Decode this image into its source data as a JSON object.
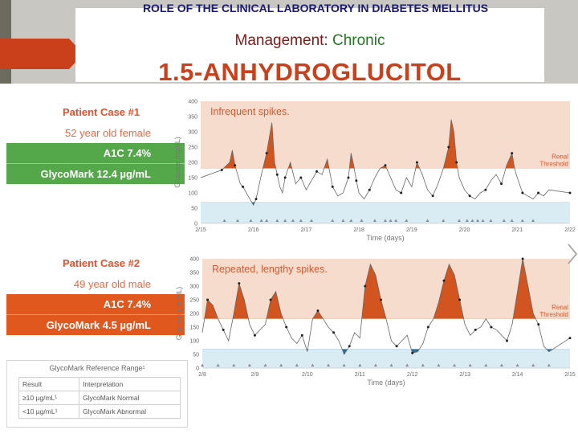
{
  "slide": {
    "title": "ROLE OF THE CLINICAL LABORATORY IN DIABETES MELLITUS",
    "subtitle_prefix": "Management:",
    "subtitle_highlight": "Chronic",
    "big_title": "1.5-ANHYDROGLUCITOL"
  },
  "cases": [
    {
      "title": "Patient Case #1",
      "desc": "52 year old female",
      "a1c": "A1C 7.4%",
      "glycomark": "GlycoMark 12.4 µg/mL",
      "bar_color": "#55a84a"
    },
    {
      "title": "Patient Case #2",
      "desc": "49 year old male",
      "a1c": "A1C 7.4%",
      "glycomark": "GlycoMark 4.5 µg/mL",
      "bar_color": "#e0581e"
    }
  ],
  "reference": {
    "title": "GlycoMark Reference Range¹",
    "header": [
      "Result",
      "Interpretation"
    ],
    "rows": [
      [
        "≥10 µg/mL¹",
        "GlycoMark Normal"
      ],
      [
        "<10 µg/mL¹",
        "GlycoMark Abnormal"
      ]
    ]
  },
  "colors": {
    "high_band": "#f6dccd",
    "low_band": "#d9ebf3",
    "spike_fill": "#d2541e",
    "low_fill": "#2c6f9a",
    "trace": "#666666"
  },
  "chart_data": [
    {
      "type": "area",
      "title": "Infrequent spikes.",
      "xlabel": "Time (days)",
      "ylabel": "Glucose mg/dL)",
      "x_ticks": [
        "2/15",
        "2/16",
        "2/17",
        "2/18",
        "2/19",
        "2/20",
        "2/21",
        "2/22"
      ],
      "y_ticks": [
        0,
        50,
        100,
        150,
        200,
        250,
        300,
        350,
        400
      ],
      "ylim": [
        0,
        400
      ],
      "renal_threshold": 180,
      "threshold_label": [
        "Renal",
        "Threshold"
      ],
      "low_threshold": 70,
      "x": [
        0,
        0.4,
        0.55,
        0.6,
        0.65,
        0.7,
        0.75,
        0.8,
        0.9,
        1.0,
        1.05,
        1.1,
        1.15,
        1.25,
        1.35,
        1.4,
        1.45,
        1.5,
        1.55,
        1.6,
        1.7,
        1.8,
        1.9,
        2.0,
        2.1,
        2.2,
        2.3,
        2.4,
        2.5,
        2.6,
        2.7,
        2.8,
        2.85,
        2.9,
        2.95,
        3.0,
        3.1,
        3.2,
        3.3,
        3.4,
        3.5,
        3.6,
        3.7,
        3.8,
        3.9,
        4.0,
        4.1,
        4.2,
        4.3,
        4.4,
        4.5,
        4.6,
        4.7,
        4.75,
        4.8,
        4.85,
        4.9,
        5.0,
        5.1,
        5.2,
        5.3,
        5.4,
        5.5,
        5.6,
        5.7,
        5.8,
        5.85,
        5.9,
        5.95,
        6.0,
        6.1,
        6.2,
        6.3,
        6.4,
        6.5,
        6.6,
        7.0
      ],
      "y": [
        150,
        175,
        200,
        240,
        190,
        160,
        130,
        120,
        90,
        60,
        80,
        120,
        160,
        230,
        330,
        200,
        160,
        120,
        100,
        150,
        200,
        130,
        150,
        110,
        140,
        170,
        160,
        210,
        120,
        90,
        100,
        150,
        230,
        190,
        140,
        100,
        80,
        110,
        150,
        180,
        190,
        150,
        110,
        100,
        150,
        120,
        200,
        160,
        110,
        90,
        130,
        180,
        250,
        340,
        300,
        200,
        150,
        110,
        90,
        80,
        100,
        110,
        140,
        160,
        130,
        190,
        210,
        230,
        180,
        150,
        100,
        90,
        80,
        100,
        90,
        110,
        100
      ],
      "marker_days": [
        0.45,
        0.7,
        0.95,
        1.15,
        1.25,
        1.45,
        1.6,
        1.75,
        1.9,
        2.1,
        2.5,
        2.7,
        2.85,
        3.05,
        3.3,
        3.5,
        3.6,
        3.7,
        3.9,
        4.3,
        4.6,
        4.9,
        5.05,
        5.15,
        5.25,
        5.35,
        5.5,
        5.75,
        5.9,
        6.1,
        6.3
      ]
    },
    {
      "type": "area",
      "title": "Repeated, lengthy spikes.",
      "xlabel": "Time (days)",
      "ylabel": "Glucose (mg/dL)",
      "x_ticks": [
        "2/8",
        "2/9",
        "2/10",
        "2/11",
        "2/12",
        "2/13",
        "2/14",
        "2/15"
      ],
      "y_ticks": [
        0,
        50,
        100,
        150,
        200,
        250,
        300,
        350,
        400
      ],
      "ylim": [
        0,
        400
      ],
      "renal_threshold": 180,
      "threshold_label": [
        "Renal",
        "Threshold"
      ],
      "low_threshold": 70,
      "x": [
        0,
        0.1,
        0.2,
        0.3,
        0.4,
        0.5,
        0.6,
        0.7,
        0.8,
        0.9,
        1.0,
        1.1,
        1.2,
        1.3,
        1.4,
        1.5,
        1.6,
        1.7,
        1.8,
        1.9,
        2.0,
        2.1,
        2.2,
        2.3,
        2.4,
        2.5,
        2.6,
        2.7,
        2.8,
        2.9,
        3.0,
        3.1,
        3.2,
        3.3,
        3.4,
        3.5,
        3.6,
        3.7,
        3.8,
        3.9,
        4.0,
        4.1,
        4.2,
        4.3,
        4.4,
        4.5,
        4.6,
        4.7,
        4.8,
        4.9,
        5.0,
        5.1,
        5.2,
        5.3,
        5.4,
        5.5,
        5.6,
        5.7,
        5.8,
        5.9,
        6.0,
        6.1,
        6.2,
        6.3,
        6.4,
        6.5,
        6.6,
        7.0
      ],
      "y": [
        130,
        250,
        230,
        180,
        140,
        100,
        200,
        310,
        250,
        160,
        120,
        140,
        160,
        250,
        280,
        200,
        150,
        110,
        90,
        120,
        60,
        180,
        210,
        180,
        150,
        130,
        100,
        50,
        80,
        130,
        110,
        300,
        380,
        340,
        250,
        180,
        100,
        80,
        100,
        120,
        55,
        60,
        90,
        150,
        180,
        240,
        320,
        380,
        340,
        250,
        160,
        120,
        140,
        150,
        180,
        150,
        140,
        120,
        100,
        160,
        280,
        400,
        300,
        200,
        160,
        80,
        60,
        110
      ]
    }
  ]
}
